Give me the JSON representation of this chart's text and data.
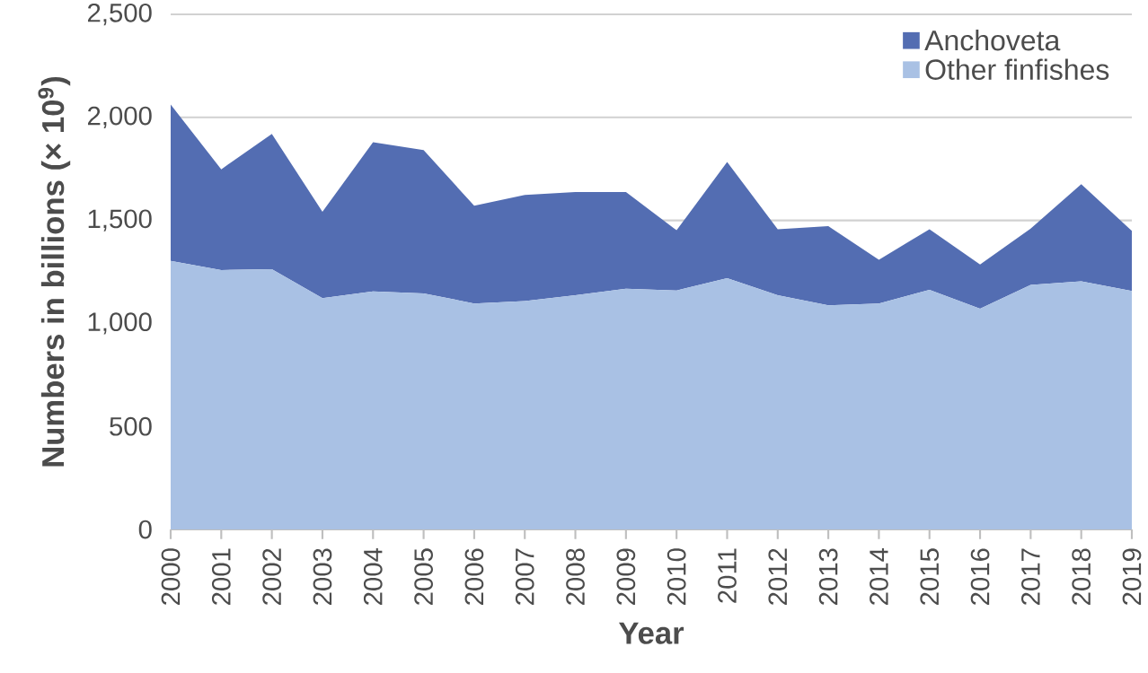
{
  "chart_data": {
    "type": "area",
    "stacked": true,
    "xlabel": "Year",
    "ylabel": "Numbers in billions (× 10$^{9}$)",
    "x": [
      2000,
      2001,
      2002,
      2003,
      2004,
      2005,
      2006,
      2007,
      2008,
      2009,
      2010,
      2011,
      2012,
      2013,
      2014,
      2015,
      2016,
      2017,
      2018,
      2019
    ],
    "series": [
      {
        "name": "Other finfishes",
        "color": "#a9c1e4",
        "values": [
          1303,
          1259,
          1263,
          1123,
          1155,
          1146,
          1097,
          1108,
          1137,
          1168,
          1160,
          1219,
          1137,
          1088,
          1097,
          1163,
          1071,
          1187,
          1204,
          1158
        ]
      },
      {
        "name": "Anchoveta",
        "color": "#536db2",
        "values": [
          759,
          489,
          657,
          419,
          724,
          695,
          474,
          515,
          501,
          470,
          292,
          564,
          320,
          384,
          212,
          294,
          215,
          273,
          472,
          291
        ]
      }
    ],
    "xlim": [
      2000,
      2019
    ],
    "xticks": [
      2000,
      2001,
      2002,
      2003,
      2004,
      2005,
      2006,
      2007,
      2008,
      2009,
      2010,
      2011,
      2012,
      2013,
      2014,
      2015,
      2016,
      2017,
      2018,
      2019
    ],
    "ylim": [
      0,
      2500
    ],
    "yticks": [
      0,
      500,
      {
        "value": 1000,
        "label": "1,000"
      },
      {
        "value": 1500,
        "label": "1,500"
      },
      {
        "value": 2000,
        "label": "2,000"
      },
      {
        "value": 2500,
        "label": "2,500"
      }
    ],
    "grid": "y",
    "legend": "top right"
  }
}
